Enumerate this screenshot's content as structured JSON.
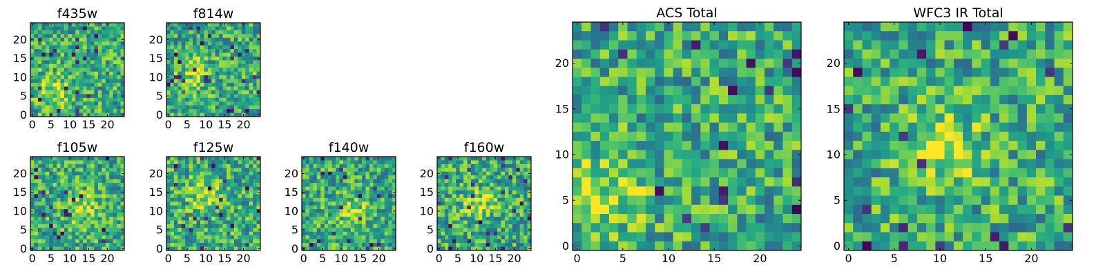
{
  "chart_data": [
    {
      "type": "heatmap",
      "title": "f435w",
      "xticks": [
        "0",
        "5",
        "10",
        "15",
        "20"
      ],
      "yticks": [
        "0",
        "5",
        "10",
        "15",
        "20"
      ],
      "xlim": [
        0,
        25
      ],
      "ylim": [
        0,
        25
      ],
      "grid_size": 25,
      "colormap": "viridis",
      "seed": 11,
      "blob": [
        0.25,
        0.72
      ]
    },
    {
      "type": "heatmap",
      "title": "f814w",
      "xticks": [
        "0",
        "5",
        "10",
        "15",
        "20"
      ],
      "yticks": [
        "0",
        "5",
        "10",
        "15",
        "20"
      ],
      "xlim": [
        0,
        25
      ],
      "ylim": [
        0,
        25
      ],
      "grid_size": 25,
      "colormap": "viridis",
      "seed": 23,
      "blob": [
        0.3,
        0.55
      ]
    },
    {
      "type": "heatmap",
      "title": "f105w",
      "xticks": [
        "0",
        "5",
        "10",
        "15",
        "20"
      ],
      "yticks": [
        "0",
        "5",
        "10",
        "15",
        "20"
      ],
      "xlim": [
        0,
        25
      ],
      "ylim": [
        0,
        25
      ],
      "grid_size": 25,
      "colormap": "viridis",
      "seed": 37,
      "blob": [
        0.55,
        0.55
      ]
    },
    {
      "type": "heatmap",
      "title": "f125w",
      "xticks": [
        "0",
        "5",
        "10",
        "15",
        "20"
      ],
      "yticks": [
        "0",
        "5",
        "10",
        "15",
        "20"
      ],
      "xlim": [
        0,
        25
      ],
      "ylim": [
        0,
        25
      ],
      "grid_size": 25,
      "colormap": "viridis",
      "seed": 41,
      "blob": [
        0.4,
        0.4
      ]
    },
    {
      "type": "heatmap",
      "title": "f140w",
      "xticks": [
        "0",
        "5",
        "10",
        "15",
        "20"
      ],
      "yticks": [
        "0",
        "5",
        "10",
        "15",
        "20"
      ],
      "xlim": [
        0,
        25
      ],
      "ylim": [
        0,
        25
      ],
      "grid_size": 25,
      "colormap": "viridis",
      "seed": 53,
      "blob": [
        0.55,
        0.6
      ]
    },
    {
      "type": "heatmap",
      "title": "f160w",
      "xticks": [
        "0",
        "5",
        "10",
        "15",
        "20"
      ],
      "yticks": [
        "0",
        "5",
        "10",
        "15",
        "20"
      ],
      "xlim": [
        0,
        25
      ],
      "ylim": [
        0,
        25
      ],
      "grid_size": 25,
      "colormap": "viridis",
      "seed": 67,
      "blob": [
        0.45,
        0.5
      ]
    },
    {
      "type": "heatmap",
      "title": "ACS Total",
      "xticks": [
        "0",
        "5",
        "10",
        "15",
        "20"
      ],
      "yticks": [
        "0",
        "5",
        "10",
        "15",
        "20"
      ],
      "xlim": [
        0,
        25
      ],
      "ylim": [
        0,
        25
      ],
      "grid_size": 25,
      "colormap": "viridis",
      "seed": 79,
      "blob": [
        0.15,
        0.75
      ]
    },
    {
      "type": "heatmap",
      "title": "WFC3 IR Total",
      "xticks": [
        "0",
        "5",
        "10",
        "15",
        "20"
      ],
      "yticks": [
        "0",
        "5",
        "10",
        "15",
        "20"
      ],
      "xlim": [
        0,
        25
      ],
      "ylim": [
        0,
        25
      ],
      "grid_size": 25,
      "colormap": "viridis",
      "seed": 97,
      "blob": [
        0.45,
        0.55
      ]
    }
  ]
}
